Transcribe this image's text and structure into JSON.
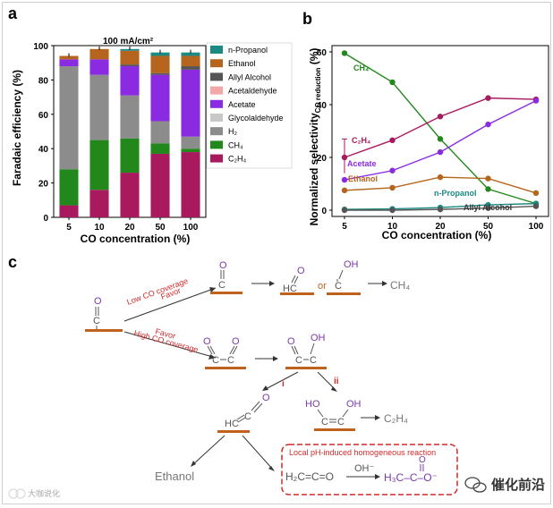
{
  "panel_a": {
    "label": "a",
    "annotation": "100 mA/cm²",
    "ylabel": "Faradaic efficiency (%)",
    "xlabel": "CO concentration (%)"
  },
  "panel_b": {
    "label": "b",
    "ylabel": "Normalized selectivity",
    "ylabel_sub": "CO reduction",
    "ylabel_unit": " (%)",
    "xlabel": "CO concentration (%)",
    "labels": {
      "ch4": "CH₄",
      "c2h4": "C₂H₄",
      "acetate": "Acetate",
      "ethanol": "Ethanol",
      "npropanol": "n-Propanol",
      "allyl": "Allyl Alcohol"
    }
  },
  "panel_c": {
    "label": "c",
    "low_co": "Low CO coverage",
    "favor_top": "Favor",
    "favor_bottom": "Favor",
    "high_co": "High CO coverage",
    "or": "or",
    "ch4": "CH₄",
    "c2h4": "C₂H₄",
    "path_i": "i",
    "path_ii": "ii",
    "ethanol": "Ethanol",
    "box_title": "Local pH-induced homogeneous reaction",
    "ketene": "H₂C=C=O",
    "hydroxide": "OH⁻",
    "acetate": "H₃C–C–O⁻",
    "mol_hco": "HC",
    "mol_ho": "HO",
    "mol_oh": "OH",
    "mol_hc": "HC",
    "mol_c": "C",
    "mol_o": "O"
  },
  "watermark_left": "大咖说化",
  "watermark_right": "催化前沿",
  "colors": {
    "ch4": "#22881c",
    "c2h4": "#a8195e",
    "acetate": "#8a2be2",
    "ethanol": "#b5651d",
    "npropanol": "#1a8a82",
    "allyl": "#555555",
    "h2": "#8c8c8c",
    "glyco": "#c8c8c8",
    "acetaldehyde": "#f4a7a7",
    "red": "#d12a2a",
    "orange": "#c0621e"
  },
  "chart_data": [
    {
      "type": "bar",
      "stacked": true,
      "title": "100 mA/cm²",
      "xlabel": "CO concentration (%)",
      "ylabel": "Faradaic efficiency (%)",
      "ylim": [
        0,
        100
      ],
      "yticks": [
        0,
        20,
        40,
        60,
        80,
        100
      ],
      "categories": [
        "5",
        "10",
        "20",
        "50",
        "100"
      ],
      "series": [
        {
          "name": "C₂H₄",
          "key": "c2h4",
          "values": [
            7,
            16,
            26,
            37,
            38
          ]
        },
        {
          "name": "CH₄",
          "key": "ch4",
          "values": [
            21,
            29,
            20,
            6,
            2
          ]
        },
        {
          "name": "H₂",
          "key": "h2",
          "values": [
            60,
            38,
            25,
            13,
            7
          ]
        },
        {
          "name": "Glycolaldehyde",
          "key": "glyco",
          "values": [
            0,
            0,
            0,
            0,
            0
          ]
        },
        {
          "name": "Acetate",
          "key": "acetate",
          "values": [
            4,
            9,
            17,
            27,
            39
          ]
        },
        {
          "name": "Acetaldehyde",
          "key": "acetaldehyde",
          "values": [
            0,
            0,
            0,
            0,
            0
          ]
        },
        {
          "name": "Allyl Alcohol",
          "key": "allyl",
          "values": [
            0,
            0,
            1,
            1,
            2
          ]
        },
        {
          "name": "Ethanol",
          "key": "ethanol",
          "values": [
            2,
            6,
            8,
            10,
            6
          ]
        },
        {
          "name": "n-Propanol",
          "key": "npropanol",
          "values": [
            0,
            0,
            1,
            2,
            2
          ]
        }
      ],
      "legend": [
        "n-Propanol",
        "Ethanol",
        "Allyl Alcohol",
        "Acetaldehyde",
        "Acetate",
        "Glycolaldehyde",
        "H₂",
        "CH₄",
        "C₂H₄"
      ],
      "legend_keys": [
        "npropanol",
        "ethanol",
        "allyl",
        "acetaldehyde",
        "acetate",
        "glyco",
        "h2",
        "ch4",
        "c2h4"
      ]
    },
    {
      "type": "line",
      "xlabel": "CO concentration (%)",
      "ylabel": "Normalized selectivity CO reduction (%)",
      "ylim": [
        0,
        60
      ],
      "yticks": [
        0,
        20,
        40,
        60
      ],
      "x": [
        "5",
        "10",
        "20",
        "50",
        "100"
      ],
      "series": [
        {
          "name": "CH₄",
          "key": "ch4",
          "values": [
            59.5,
            48.5,
            27,
            8,
            2.5
          ]
        },
        {
          "name": "C₂H₄",
          "key": "c2h4",
          "values": [
            20,
            26.5,
            35.5,
            42.5,
            42
          ]
        },
        {
          "name": "Acetate",
          "key": "acetate",
          "values": [
            11.5,
            15,
            22,
            32.5,
            41.5
          ]
        },
        {
          "name": "Ethanol",
          "key": "ethanol",
          "values": [
            7.5,
            8.5,
            12.5,
            12,
            6.5
          ]
        },
        {
          "name": "n-Propanol",
          "key": "npropanol",
          "values": [
            0.3,
            0.5,
            1,
            2,
            2.5
          ]
        },
        {
          "name": "Allyl Alcohol",
          "key": "allyl",
          "values": [
            0,
            0,
            0.3,
            0.8,
            1.5
          ]
        }
      ]
    }
  ]
}
